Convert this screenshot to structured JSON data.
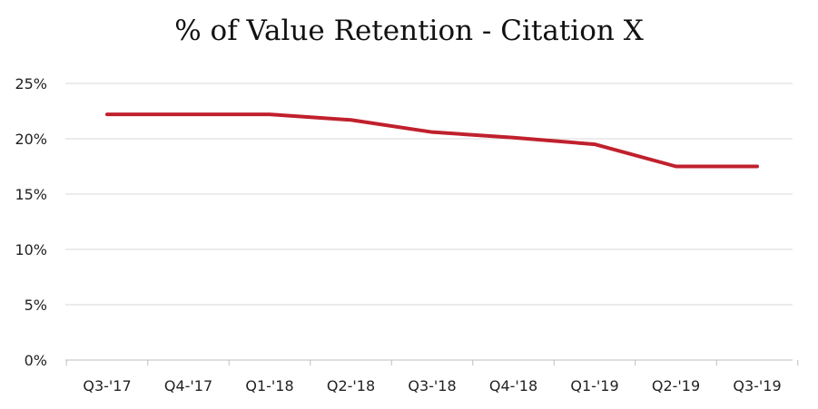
{
  "chart_data": {
    "type": "line",
    "title": "% of Value Retention - Citation X",
    "xlabel": "",
    "ylabel": "",
    "categories": [
      "Q3-'17",
      "Q4-'17",
      "Q1-'18",
      "Q2-'18",
      "Q3-'18",
      "Q4-'18",
      "Q1-'19",
      "Q2-'19",
      "Q3-'19"
    ],
    "series": [
      {
        "values": [
          22.2,
          22.2,
          22.2,
          21.7,
          20.6,
          20.1,
          19.5,
          17.5,
          17.5
        ],
        "color": "#C0202D"
      }
    ],
    "ylim": [
      0,
      25
    ],
    "yticks": [
      0,
      5,
      10,
      15,
      20,
      25
    ],
    "ytick_labels": [
      "0%",
      "5%",
      "10%",
      "15%",
      "20%",
      "25%"
    ],
    "grid": true,
    "grid_color": "#d9d9d9",
    "legend": "none"
  }
}
